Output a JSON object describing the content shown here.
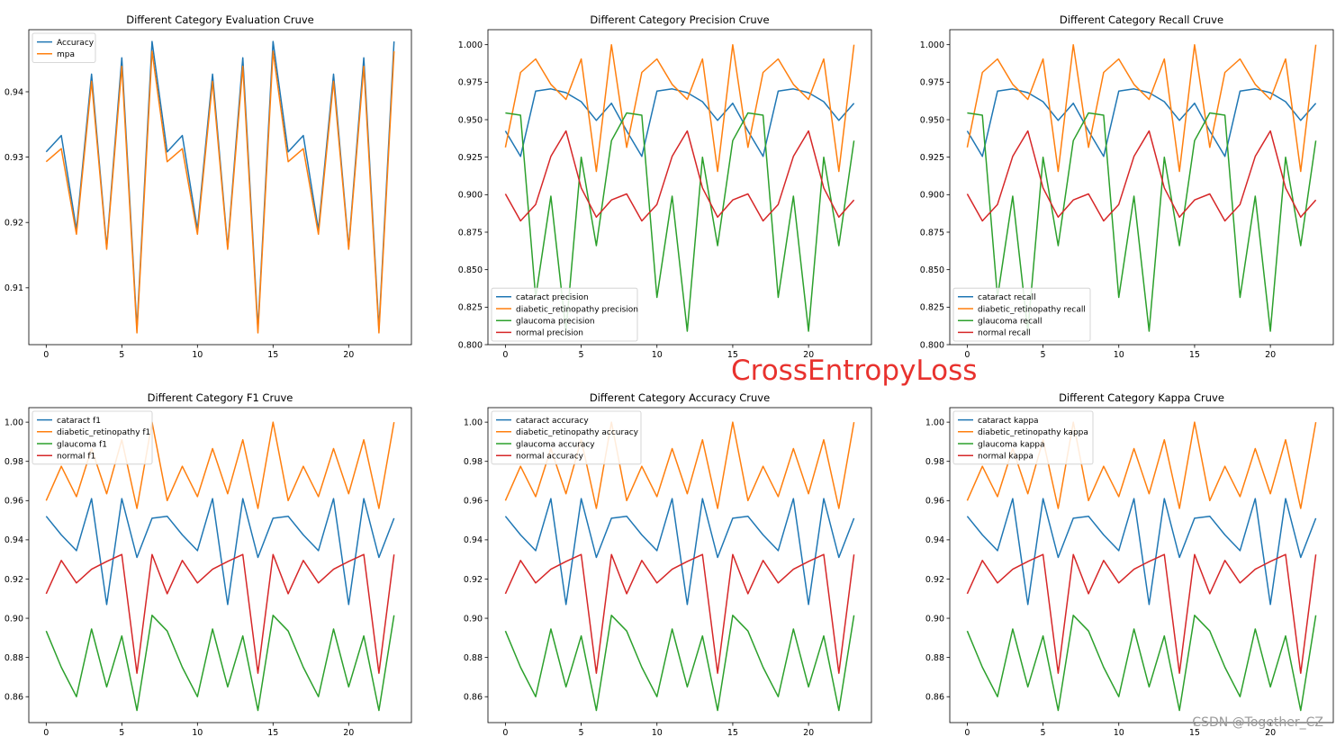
{
  "overlay": {
    "label": "CrossEntropyLoss"
  },
  "watermark": {
    "text": "CSDN @Together_CZ"
  },
  "colors": {
    "blue": "#1f77b4",
    "orange": "#ff7f0e",
    "green": "#2ca02c",
    "red": "#d62728"
  },
  "chart_data": [
    {
      "type": "line",
      "title": "Different Category Evaluation Cruve",
      "xlabel": "",
      "ylabel": "",
      "x": [
        0,
        1,
        2,
        3,
        4,
        5,
        6,
        7,
        8,
        9,
        10,
        11,
        12,
        13,
        14,
        15,
        16,
        17,
        18,
        19,
        20,
        21,
        22,
        23
      ],
      "xticks": [
        0,
        5,
        10,
        15,
        20
      ],
      "yticks": [
        0.91,
        0.92,
        0.93,
        0.94
      ],
      "ylim": [
        0.9013,
        0.9495
      ],
      "legend": "upper left",
      "grid": false,
      "series": [
        {
          "name": "Accuracy",
          "color": "#1f77b4",
          "values": [
            0.9308,
            0.9333,
            0.9189,
            0.9427,
            0.9162,
            0.9452,
            0.9037,
            0.9477,
            0.9308,
            0.9333,
            0.9189,
            0.9427,
            0.9162,
            0.9452,
            0.9037,
            0.9477,
            0.9308,
            0.9333,
            0.9189,
            0.9427,
            0.9162,
            0.9452,
            0.9037,
            0.9477
          ]
        },
        {
          "name": "mpa",
          "color": "#ff7f0e",
          "values": [
            0.9293,
            0.9313,
            0.9182,
            0.9416,
            0.9159,
            0.9439,
            0.9031,
            0.9462,
            0.9293,
            0.9313,
            0.9182,
            0.9416,
            0.9159,
            0.9439,
            0.9031,
            0.9462,
            0.9293,
            0.9313,
            0.9182,
            0.9416,
            0.9159,
            0.9439,
            0.9031,
            0.9462
          ]
        }
      ]
    },
    {
      "type": "line",
      "title": "Different Category Precision Cruve",
      "xlabel": "",
      "ylabel": "",
      "x": [
        0,
        1,
        2,
        3,
        4,
        5,
        6,
        7,
        8,
        9,
        10,
        11,
        12,
        13,
        14,
        15,
        16,
        17,
        18,
        19,
        20,
        21,
        22,
        23
      ],
      "xticks": [
        0,
        5,
        10,
        15,
        20
      ],
      "yticks": [
        0.8,
        0.825,
        0.85,
        0.875,
        0.9,
        0.925,
        0.95,
        0.975,
        1.0
      ],
      "ylim": [
        0.8,
        1.01
      ],
      "legend": "lower left",
      "grid": false,
      "series": [
        {
          "name": "cataract precision",
          "color": "#1f77b4",
          "values": [
            0.9425,
            0.9255,
            0.969,
            0.9705,
            0.968,
            0.962,
            0.9495,
            0.961,
            0.9425,
            0.9255,
            0.969,
            0.9705,
            0.968,
            0.962,
            0.9495,
            0.961,
            0.9425,
            0.9255,
            0.969,
            0.9705,
            0.968,
            0.962,
            0.9495,
            0.961
          ]
        },
        {
          "name": "diabetic_retinopathy precision",
          "color": "#ff7f0e",
          "values": [
            0.9315,
            0.9815,
            0.9905,
            0.9735,
            0.9635,
            0.9905,
            0.9155,
            1.0,
            0.9315,
            0.9815,
            0.9905,
            0.9735,
            0.9635,
            0.9905,
            0.9155,
            1.0,
            0.9315,
            0.9815,
            0.9905,
            0.9735,
            0.9635,
            0.9905,
            0.9155,
            1.0
          ]
        },
        {
          "name": "glaucoma precision",
          "color": "#2ca02c",
          "values": [
            0.9545,
            0.953,
            0.8315,
            0.899,
            0.809,
            0.925,
            0.866,
            0.936,
            0.9545,
            0.953,
            0.8315,
            0.899,
            0.809,
            0.925,
            0.866,
            0.936,
            0.9545,
            0.953,
            0.8315,
            0.899,
            0.809,
            0.925,
            0.866,
            0.936
          ]
        },
        {
          "name": "normal precision",
          "color": "#d62728",
          "values": [
            0.9005,
            0.8825,
            0.8935,
            0.9255,
            0.9425,
            0.9045,
            0.885,
            0.8965,
            0.9005,
            0.8825,
            0.8935,
            0.9255,
            0.9425,
            0.9045,
            0.885,
            0.8965,
            0.9005,
            0.8825,
            0.8935,
            0.9255,
            0.9425,
            0.9045,
            0.885,
            0.8965
          ]
        }
      ]
    },
    {
      "type": "line",
      "title": "Different Category Recall Cruve",
      "xlabel": "",
      "ylabel": "",
      "x": [
        0,
        1,
        2,
        3,
        4,
        5,
        6,
        7,
        8,
        9,
        10,
        11,
        12,
        13,
        14,
        15,
        16,
        17,
        18,
        19,
        20,
        21,
        22,
        23
      ],
      "xticks": [
        0,
        5,
        10,
        15,
        20
      ],
      "yticks": [
        0.8,
        0.825,
        0.85,
        0.875,
        0.9,
        0.925,
        0.95,
        0.975,
        1.0
      ],
      "ylim": [
        0.8,
        1.01
      ],
      "legend": "lower left",
      "grid": false,
      "series": [
        {
          "name": "cataract recall",
          "color": "#1f77b4",
          "values": [
            0.9425,
            0.9255,
            0.969,
            0.9705,
            0.968,
            0.962,
            0.9495,
            0.961,
            0.9425,
            0.9255,
            0.969,
            0.9705,
            0.968,
            0.962,
            0.9495,
            0.961,
            0.9425,
            0.9255,
            0.969,
            0.9705,
            0.968,
            0.962,
            0.9495,
            0.961
          ]
        },
        {
          "name": "diabetic_retinopathy recall",
          "color": "#ff7f0e",
          "values": [
            0.9315,
            0.9815,
            0.9905,
            0.9735,
            0.9635,
            0.9905,
            0.9155,
            1.0,
            0.9315,
            0.9815,
            0.9905,
            0.9735,
            0.9635,
            0.9905,
            0.9155,
            1.0,
            0.9315,
            0.9815,
            0.9905,
            0.9735,
            0.9635,
            0.9905,
            0.9155,
            1.0
          ]
        },
        {
          "name": "glaucoma recall",
          "color": "#2ca02c",
          "values": [
            0.9545,
            0.953,
            0.8315,
            0.899,
            0.809,
            0.925,
            0.866,
            0.936,
            0.9545,
            0.953,
            0.8315,
            0.899,
            0.809,
            0.925,
            0.866,
            0.936,
            0.9545,
            0.953,
            0.8315,
            0.899,
            0.809,
            0.925,
            0.866,
            0.936
          ]
        },
        {
          "name": "normal recall",
          "color": "#d62728",
          "values": [
            0.9005,
            0.8825,
            0.8935,
            0.9255,
            0.9425,
            0.9045,
            0.885,
            0.8965,
            0.9005,
            0.8825,
            0.8935,
            0.9255,
            0.9425,
            0.9045,
            0.885,
            0.8965,
            0.9005,
            0.8825,
            0.8935,
            0.9255,
            0.9425,
            0.9045,
            0.885,
            0.8965
          ]
        }
      ]
    },
    {
      "type": "line",
      "title": "Different Category F1 Cruve",
      "xlabel": "",
      "ylabel": "",
      "x": [
        0,
        1,
        2,
        3,
        4,
        5,
        6,
        7,
        8,
        9,
        10,
        11,
        12,
        13,
        14,
        15,
        16,
        17,
        18,
        19,
        20,
        21,
        22,
        23
      ],
      "xticks": [
        0,
        5,
        10,
        15,
        20
      ],
      "yticks": [
        0.86,
        0.88,
        0.9,
        0.92,
        0.94,
        0.96,
        0.98,
        1.0
      ],
      "ylim": [
        0.8468,
        1.0074
      ],
      "legend": "upper left",
      "grid": false,
      "series": [
        {
          "name": "cataract f1",
          "color": "#1f77b4",
          "values": [
            0.952,
            0.9425,
            0.9345,
            0.961,
            0.907,
            0.961,
            0.931,
            0.951,
            0.952,
            0.9425,
            0.9345,
            0.961,
            0.907,
            0.961,
            0.931,
            0.951,
            0.952,
            0.9425,
            0.9345,
            0.961,
            0.907,
            0.961,
            0.931,
            0.951
          ]
        },
        {
          "name": "diabetic_retinopathy f1",
          "color": "#ff7f0e",
          "values": [
            0.96,
            0.9775,
            0.962,
            0.9865,
            0.9635,
            0.991,
            0.956,
            1.0,
            0.96,
            0.9775,
            0.962,
            0.9865,
            0.9635,
            0.991,
            0.956,
            1.0,
            0.96,
            0.9775,
            0.962,
            0.9865,
            0.9635,
            0.991,
            0.956,
            1.0
          ]
        },
        {
          "name": "glaucoma f1",
          "color": "#2ca02c",
          "values": [
            0.8935,
            0.875,
            0.86,
            0.8945,
            0.865,
            0.891,
            0.853,
            0.9015,
            0.8935,
            0.875,
            0.86,
            0.8945,
            0.865,
            0.891,
            0.853,
            0.9015,
            0.8935,
            0.875,
            0.86,
            0.8945,
            0.865,
            0.891,
            0.853,
            0.9015
          ]
        },
        {
          "name": "normal f1",
          "color": "#d62728",
          "values": [
            0.9125,
            0.9295,
            0.918,
            0.925,
            0.929,
            0.9325,
            0.872,
            0.9325,
            0.9125,
            0.9295,
            0.918,
            0.925,
            0.929,
            0.9325,
            0.872,
            0.9325,
            0.9125,
            0.9295,
            0.918,
            0.925,
            0.929,
            0.9325,
            0.872,
            0.9325
          ]
        }
      ]
    },
    {
      "type": "line",
      "title": "Different Category Accuracy Cruve",
      "xlabel": "",
      "ylabel": "",
      "x": [
        0,
        1,
        2,
        3,
        4,
        5,
        6,
        7,
        8,
        9,
        10,
        11,
        12,
        13,
        14,
        15,
        16,
        17,
        18,
        19,
        20,
        21,
        22,
        23
      ],
      "xticks": [
        0,
        5,
        10,
        15,
        20
      ],
      "yticks": [
        0.86,
        0.88,
        0.9,
        0.92,
        0.94,
        0.96,
        0.98,
        1.0
      ],
      "ylim": [
        0.8468,
        1.0074
      ],
      "legend": "upper left",
      "grid": false,
      "series": [
        {
          "name": "cataract accuracy",
          "color": "#1f77b4",
          "values": [
            0.952,
            0.9425,
            0.9345,
            0.961,
            0.907,
            0.961,
            0.931,
            0.951,
            0.952,
            0.9425,
            0.9345,
            0.961,
            0.907,
            0.961,
            0.931,
            0.951,
            0.952,
            0.9425,
            0.9345,
            0.961,
            0.907,
            0.961,
            0.931,
            0.951
          ]
        },
        {
          "name": "diabetic_retinopathy accuracy",
          "color": "#ff7f0e",
          "values": [
            0.96,
            0.9775,
            0.962,
            0.9865,
            0.9635,
            0.991,
            0.956,
            1.0,
            0.96,
            0.9775,
            0.962,
            0.9865,
            0.9635,
            0.991,
            0.956,
            1.0,
            0.96,
            0.9775,
            0.962,
            0.9865,
            0.9635,
            0.991,
            0.956,
            1.0
          ]
        },
        {
          "name": "glaucoma accuracy",
          "color": "#2ca02c",
          "values": [
            0.8935,
            0.875,
            0.86,
            0.8945,
            0.865,
            0.891,
            0.853,
            0.9015,
            0.8935,
            0.875,
            0.86,
            0.8945,
            0.865,
            0.891,
            0.853,
            0.9015,
            0.8935,
            0.875,
            0.86,
            0.8945,
            0.865,
            0.891,
            0.853,
            0.9015
          ]
        },
        {
          "name": "normal accuracy",
          "color": "#d62728",
          "values": [
            0.9125,
            0.9295,
            0.918,
            0.925,
            0.929,
            0.9325,
            0.872,
            0.9325,
            0.9125,
            0.9295,
            0.918,
            0.925,
            0.929,
            0.9325,
            0.872,
            0.9325,
            0.9125,
            0.9295,
            0.918,
            0.925,
            0.929,
            0.9325,
            0.872,
            0.9325
          ]
        }
      ]
    },
    {
      "type": "line",
      "title": "Different Category Kappa Cruve",
      "xlabel": "",
      "ylabel": "",
      "x": [
        0,
        1,
        2,
        3,
        4,
        5,
        6,
        7,
        8,
        9,
        10,
        11,
        12,
        13,
        14,
        15,
        16,
        17,
        18,
        19,
        20,
        21,
        22,
        23
      ],
      "xticks": [
        0,
        5,
        10,
        15,
        20
      ],
      "yticks": [
        0.86,
        0.88,
        0.9,
        0.92,
        0.94,
        0.96,
        0.98,
        1.0
      ],
      "ylim": [
        0.8468,
        1.0074
      ],
      "legend": "upper left",
      "grid": false,
      "series": [
        {
          "name": "cataract kappa",
          "color": "#1f77b4",
          "values": [
            0.952,
            0.9425,
            0.9345,
            0.961,
            0.907,
            0.961,
            0.931,
            0.951,
            0.952,
            0.9425,
            0.9345,
            0.961,
            0.907,
            0.961,
            0.931,
            0.951,
            0.952,
            0.9425,
            0.9345,
            0.961,
            0.907,
            0.961,
            0.931,
            0.951
          ]
        },
        {
          "name": "diabetic_retinopathy kappa",
          "color": "#ff7f0e",
          "values": [
            0.96,
            0.9775,
            0.962,
            0.9865,
            0.9635,
            0.991,
            0.956,
            1.0,
            0.96,
            0.9775,
            0.962,
            0.9865,
            0.9635,
            0.991,
            0.956,
            1.0,
            0.96,
            0.9775,
            0.962,
            0.9865,
            0.9635,
            0.991,
            0.956,
            1.0
          ]
        },
        {
          "name": "glaucoma kappa",
          "color": "#2ca02c",
          "values": [
            0.8935,
            0.875,
            0.86,
            0.8945,
            0.865,
            0.891,
            0.853,
            0.9015,
            0.8935,
            0.875,
            0.86,
            0.8945,
            0.865,
            0.891,
            0.853,
            0.9015,
            0.8935,
            0.875,
            0.86,
            0.8945,
            0.865,
            0.891,
            0.853,
            0.9015
          ]
        },
        {
          "name": "normal kappa",
          "color": "#d62728",
          "values": [
            0.9125,
            0.9295,
            0.918,
            0.925,
            0.929,
            0.9325,
            0.872,
            0.9325,
            0.9125,
            0.9295,
            0.918,
            0.925,
            0.929,
            0.9325,
            0.872,
            0.9325,
            0.9125,
            0.9295,
            0.918,
            0.925,
            0.929,
            0.9325,
            0.872,
            0.9325
          ]
        }
      ]
    }
  ]
}
